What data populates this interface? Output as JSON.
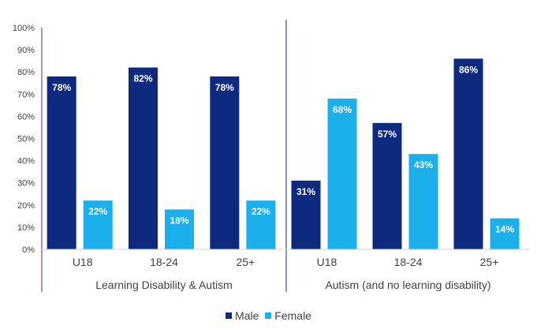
{
  "chart_data": {
    "type": "bar",
    "ylim": [
      0,
      100
    ],
    "y_ticks": [
      "0%",
      "10%",
      "20%",
      "30%",
      "40%",
      "50%",
      "60%",
      "70%",
      "80%",
      "90%",
      "100%"
    ],
    "grid": false,
    "legend_position": "bottom",
    "groups": [
      {
        "label": "Learning Disability & Autism",
        "categories": [
          "U18",
          "18-24",
          "25+"
        ],
        "series": [
          {
            "name": "Male",
            "values": [
              78,
              82,
              78
            ],
            "labels": [
              "78%",
              "82%",
              "78%"
            ]
          },
          {
            "name": "Female",
            "values": [
              22,
              18,
              22
            ],
            "labels": [
              "22%",
              "18%",
              "22%"
            ]
          }
        ]
      },
      {
        "label": "Autism (and no learning disability)",
        "categories": [
          "U18",
          "18-24",
          "25+"
        ],
        "series": [
          {
            "name": "Male",
            "values": [
              31,
              57,
              86
            ],
            "labels": [
              "31%",
              "57%",
              "86%"
            ]
          },
          {
            "name": "Female",
            "values": [
              68,
              43,
              14
            ],
            "labels": [
              "68%",
              "43%",
              "14%"
            ]
          }
        ]
      }
    ],
    "legend": [
      {
        "name": "Male",
        "color": "#0e2a7e"
      },
      {
        "name": "Female",
        "color": "#1bb0ec"
      }
    ]
  }
}
